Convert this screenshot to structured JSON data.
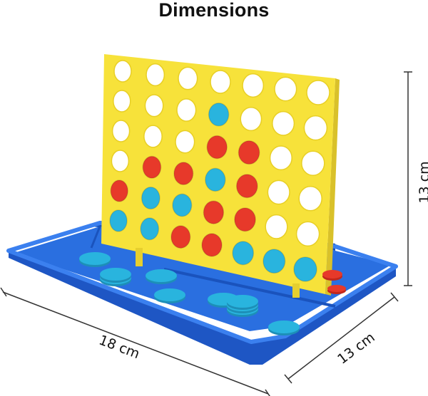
{
  "header": {
    "title": "Dimensions"
  },
  "dimensions": {
    "height": "13 cm",
    "length": "18 cm",
    "depth": "13 cm"
  },
  "product": {
    "name": "connect-four-game",
    "colors": {
      "frame": "#f7e23a",
      "tray": "#1b5fd2",
      "red_disc": "#e7392a",
      "blue_disc": "#29b4de",
      "hole": "#ffffff"
    },
    "grid": {
      "rows": 6,
      "cols": 7,
      "layout": [
        "EEEEEEE",
        "EEEBEEE",
        "EEERREE",
        "ERRBREE",
        "RBBRREE",
        "BBRRBBB"
      ]
    },
    "loose_disc_color": "blue"
  }
}
